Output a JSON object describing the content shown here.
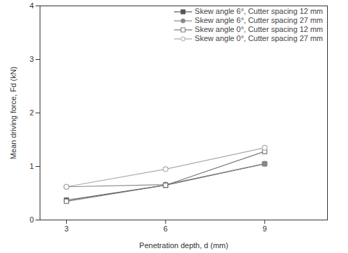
{
  "chart_data": {
    "type": "line",
    "x_label": "Penetration depth, d (mm)",
    "y_label": "Mean driving force, Fd (kN)",
    "x": [
      3,
      6,
      9
    ],
    "series": [
      {
        "name": "Skew angle 6°, Cutter spacing 12 mm",
        "color": "#555555",
        "marker": "square",
        "line_style": "solid",
        "values": [
          0.37,
          0.65,
          1.05
        ]
      },
      {
        "name": "Skew angle 6°, Cutter spacing 27 mm",
        "color": "#888888",
        "marker": "circle",
        "line_style": "solid",
        "values": [
          0.62,
          0.66,
          1.05
        ]
      },
      {
        "name": "Skew angle 0°, Cutter spacing 12 mm",
        "color": "#777777",
        "marker": "square-open",
        "line_style": "solid",
        "values": [
          0.35,
          0.65,
          1.28
        ]
      },
      {
        "name": "Skew angle 0°, Cutter spacing 27 mm",
        "color": "#aaaaaa",
        "marker": "circle-open",
        "line_style": "solid",
        "values": [
          0.62,
          0.95,
          1.35
        ]
      }
    ],
    "xlim": [
      2.2,
      10.9
    ],
    "xticks": [
      3,
      6,
      9
    ],
    "ylim": [
      0,
      4
    ],
    "yticks": [
      0,
      1,
      2,
      3,
      4
    ],
    "grid": false,
    "legend": "top-right"
  }
}
